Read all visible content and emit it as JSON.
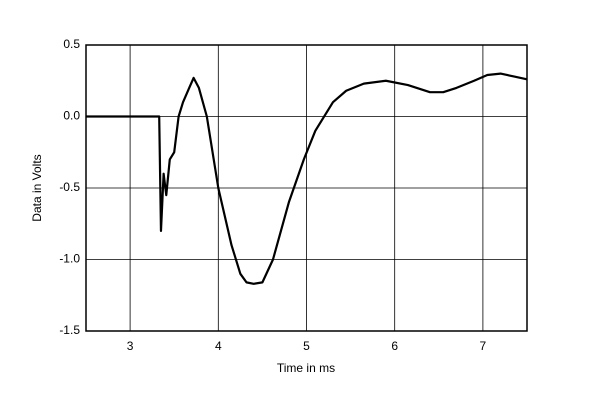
{
  "chart_data": {
    "type": "line",
    "xlabel": "Time in ms",
    "ylabel": "Data in Volts",
    "x": [
      2.5,
      3.0,
      3.33,
      3.35,
      3.38,
      3.41,
      3.45,
      3.5,
      3.55,
      3.6,
      3.67,
      3.72,
      3.78,
      3.87,
      4.0,
      4.15,
      4.25,
      4.32,
      4.4,
      4.5,
      4.62,
      4.8,
      4.97,
      5.1,
      5.3,
      5.45,
      5.65,
      5.9,
      6.15,
      6.4,
      6.55,
      6.7,
      6.9,
      7.05,
      7.2,
      7.35,
      7.5
    ],
    "series": [
      {
        "color": "#000000",
        "values": [
          0,
          0,
          0,
          -0.8,
          -0.4,
          -0.55,
          -0.3,
          -0.25,
          0.0,
          0.1,
          0.2,
          0.27,
          0.2,
          0.0,
          -0.5,
          -0.9,
          -1.1,
          -1.16,
          -1.17,
          -1.16,
          -1.0,
          -0.6,
          -0.3,
          -0.1,
          0.1,
          0.18,
          0.23,
          0.25,
          0.22,
          0.17,
          0.17,
          0.2,
          0.25,
          0.29,
          0.3,
          0.28,
          0.26
        ]
      }
    ],
    "xlim": [
      2.5,
      7.5
    ],
    "xticks": [
      3,
      4,
      5,
      6,
      7
    ],
    "ylim": [
      -1.5,
      0.5
    ],
    "yticks": [
      {
        "value": -1.5,
        "label": "-1.5"
      },
      {
        "value": -1.0,
        "label": "-1.0"
      },
      {
        "value": -0.5,
        "label": "-0.5"
      },
      {
        "value": 0.0,
        "label": "0.0"
      },
      0.5
    ],
    "grid": true
  }
}
